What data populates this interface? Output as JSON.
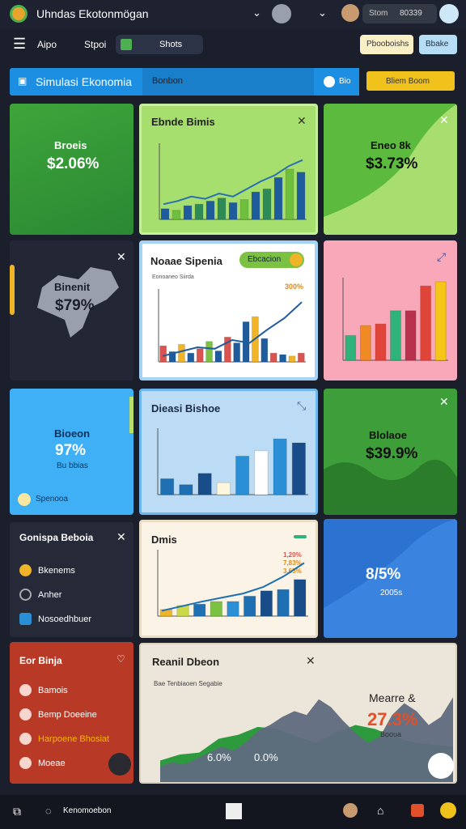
{
  "header": {
    "title": "Uhndas Ekotonmögan",
    "search": "Stom",
    "search_value": "80339"
  },
  "toolbar": {
    "items": [
      "Aipo",
      "Stpoi"
    ],
    "active_tab": "Shots",
    "buttons": [
      "Pbooboishs",
      "Bbake"
    ]
  },
  "banner": {
    "title": "Simulasi Ekonomia",
    "tab": "Bonbon",
    "toggle": "Bio",
    "action": "Bliem Boom"
  },
  "cards": {
    "c1": {
      "title": "Broeis",
      "value": "$2.06%"
    },
    "c2": {
      "title": "Ebnde Bimis",
      "chart": {
        "ylim": [
          0,
          100
        ],
        "values": [
          14,
          12,
          18,
          20,
          24,
          28,
          22,
          26,
          36,
          40,
          55,
          66,
          62
        ],
        "colors": [
          "#1f5c9e",
          "#6fbf3e",
          "#1f5c9e",
          "#2e8b57",
          "#1f5c9e",
          "#2e8b57",
          "#1f5c9e",
          "#6fbf3e",
          "#1f5c9e",
          "#2e8b57",
          "#1f5c9e",
          "#6fbf3e",
          "#1f5c9e"
        ],
        "line": [
          20,
          24,
          30,
          27,
          34,
          30,
          40,
          50,
          58,
          70,
          78
        ],
        "line_color": "#2a6fb0"
      }
    },
    "c3": {
      "title": "Eneo 8k",
      "value": "$3.73%"
    },
    "c4": {
      "title": "Binenit",
      "value": "$79%"
    },
    "c5": {
      "title": "Noaae Sipenia",
      "pill": "Ebcacion",
      "legend": "Eonoaneo Siirda",
      "label": "300%",
      "chart": {
        "ylim": [
          0,
          100
        ],
        "values": [
          22,
          14,
          24,
          12,
          18,
          28,
          15,
          34,
          26,
          55,
          62,
          32,
          12,
          10,
          8,
          12
        ],
        "colors": [
          "#d9534f",
          "#1f5c9e",
          "#f0b429",
          "#1f5c9e",
          "#d9534f",
          "#7cc242",
          "#1f5c9e",
          "#d9534f",
          "#1f5c9e",
          "#1f5c9e",
          "#f0b429",
          "#1f5c9e",
          "#d9534f",
          "#1f5c9e",
          "#f0b429",
          "#d9534f"
        ],
        "line": [
          8,
          14,
          20,
          18,
          30,
          26,
          44,
          60,
          82
        ],
        "line_color": "#1f5c9e"
      }
    },
    "c6": {
      "chart": {
        "ylim": [
          0,
          100
        ],
        "values": [
          30,
          42,
          44,
          60,
          60,
          90,
          95
        ],
        "colors": [
          "#2fb37a",
          "#f08a24",
          "#e0453a",
          "#2fb37a",
          "#b8324e",
          "#e0453a",
          "#f5c518"
        ]
      }
    },
    "c7": {
      "title": "Bioeon",
      "value": "97%",
      "subtitle": "Bu bbias",
      "footer": "Spenooa"
    },
    "c8": {
      "title": "Dieasi Bishoe",
      "chart": {
        "ylim": [
          0,
          100
        ],
        "values": [
          24,
          15,
          32,
          18,
          58,
          66,
          84,
          78
        ],
        "colors": [
          "#1f6fb3",
          "#1f6fb3",
          "#184d8a",
          "#fff7dd",
          "#2b8fd6",
          "#ffffff",
          "#2b8fd6",
          "#184d8a"
        ]
      }
    },
    "c9": {
      "title": "Blolaoe",
      "value": "$39.9%"
    },
    "c10": {
      "title": "Gonispa Beboia",
      "items": [
        "Bkenems",
        "Anher",
        "Nosoedhbuer"
      ]
    },
    "c11": {
      "title": "Dmis",
      "labels": [
        "1,20%",
        "7,83%",
        "3,65%"
      ],
      "chart": {
        "ylim": [
          0,
          100
        ],
        "values": [
          10,
          16,
          18,
          22,
          22,
          30,
          38,
          40,
          55
        ],
        "colors": [
          "#f0b429",
          "#c9d94a",
          "#1f6fb3",
          "#7cc242",
          "#2b8fd6",
          "#1f6fb3",
          "#184d8a",
          "#1f6fb3",
          "#184d8a"
        ],
        "line": [
          8,
          15,
          22,
          28,
          34,
          44,
          60,
          80
        ],
        "line_color": "#1f6fb3"
      }
    },
    "c12": {
      "value": "8/5%",
      "subtitle": "2005s"
    },
    "c13": {
      "title": "Eor Binja",
      "items": [
        "Bamois",
        "Bemp Doeeine",
        "Harpoene Bhosiat",
        "Moeae"
      ]
    },
    "c14": {
      "title": "Reanil Dbeon",
      "subtitle": "Bae Tenbiaoen Segabie",
      "side_title": "Mearre &",
      "side_value": "27.3%",
      "side_sub": "Booua",
      "labels": [
        "6.0%",
        "0.0%"
      ],
      "chart": {
        "ylim": [
          0,
          100
        ],
        "areas": [
          {
            "color": "#2e9a3e",
            "values": [
              12,
              18,
              20,
              34,
              38,
              46,
              44,
              36,
              30,
              40,
              48,
              44,
              36,
              30,
              28,
              26
            ]
          },
          {
            "color": "#5f6a80",
            "values": [
              6,
              10,
              8,
              14,
              20,
              26,
              22,
              30,
              42,
              48,
              56,
              62,
              58,
              74,
              66,
              52,
              40,
              30,
              36,
              58,
              70,
              62,
              48,
              56,
              76
            ]
          }
        ]
      }
    }
  },
  "bottom_bar": {
    "label": "Kenomoebon"
  }
}
